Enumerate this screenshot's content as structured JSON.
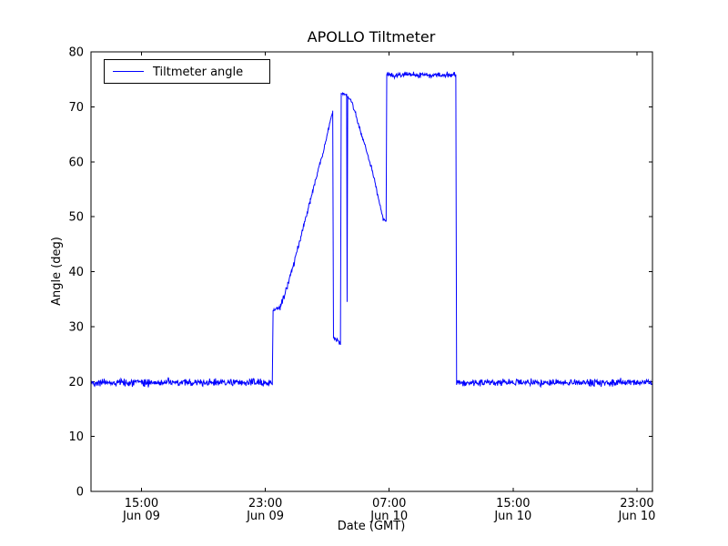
{
  "chart_data": {
    "type": "line",
    "title": "APOLLO Tiltmeter",
    "xlabel": "Date (GMT)",
    "ylabel": "Angle (deg)",
    "xlim": [
      11.74,
      48.0
    ],
    "ylim": [
      0,
      80
    ],
    "yticks": [
      0,
      10,
      20,
      30,
      40,
      50,
      60,
      70,
      80
    ],
    "xticks": [
      {
        "pos": 15,
        "time": "15:00",
        "date": "Jun 09"
      },
      {
        "pos": 23,
        "time": "23:00",
        "date": "Jun 09"
      },
      {
        "pos": 31,
        "time": "07:00",
        "date": "Jun 10"
      },
      {
        "pos": 39,
        "time": "15:00",
        "date": "Jun 10"
      },
      {
        "pos": 47,
        "time": "23:00",
        "date": "Jun 10"
      }
    ],
    "grid": false,
    "background": "#ffffff",
    "axis_color": "#000000",
    "legend": {
      "position": "upper-left",
      "entries": [
        {
          "label": "Tiltmeter angle",
          "color": "#0000ff"
        }
      ]
    },
    "series": [
      {
        "name": "Tiltmeter angle",
        "color": "#0000ff",
        "x_units": "hours since Jun 09 00:00 GMT",
        "segments_format": [
          "x_start",
          "x_end",
          "y_start",
          "y_end",
          "noise_amplitude_deg"
        ],
        "segments": [
          [
            11.74,
            11.74,
            0.0,
            19.5,
            0
          ],
          [
            11.74,
            23.45,
            19.8,
            19.8,
            0.55
          ],
          [
            23.45,
            23.5,
            20.0,
            33.0,
            0
          ],
          [
            23.5,
            23.95,
            33.0,
            33.4,
            0.3
          ],
          [
            23.95,
            24.8,
            33.4,
            41.0,
            0.5
          ],
          [
            24.8,
            25.9,
            41.0,
            53.0,
            0.45
          ],
          [
            25.9,
            26.8,
            53.0,
            62.5,
            0.35
          ],
          [
            26.8,
            27.35,
            62.5,
            69.3,
            0.3
          ],
          [
            27.35,
            27.4,
            69.3,
            28.5,
            0
          ],
          [
            27.4,
            27.85,
            28.2,
            26.8,
            0.55
          ],
          [
            27.85,
            27.9,
            26.8,
            72.4,
            0
          ],
          [
            27.9,
            28.25,
            72.4,
            72.2,
            0.2
          ],
          [
            28.25,
            28.28,
            72.2,
            34.5,
            0
          ],
          [
            28.28,
            28.32,
            34.5,
            71.9,
            0
          ],
          [
            28.32,
            28.6,
            71.9,
            70.8,
            0.2
          ],
          [
            28.6,
            29.9,
            70.8,
            58.5,
            0.3
          ],
          [
            29.9,
            30.6,
            58.5,
            49.6,
            0.25
          ],
          [
            30.6,
            30.8,
            49.6,
            49.2,
            0.2
          ],
          [
            30.8,
            30.84,
            49.2,
            75.9,
            0
          ],
          [
            30.84,
            35.3,
            75.8,
            75.8,
            0.4
          ],
          [
            35.3,
            35.35,
            75.5,
            20.5,
            0
          ],
          [
            35.35,
            48.0,
            19.8,
            19.8,
            0.55
          ]
        ]
      }
    ]
  }
}
